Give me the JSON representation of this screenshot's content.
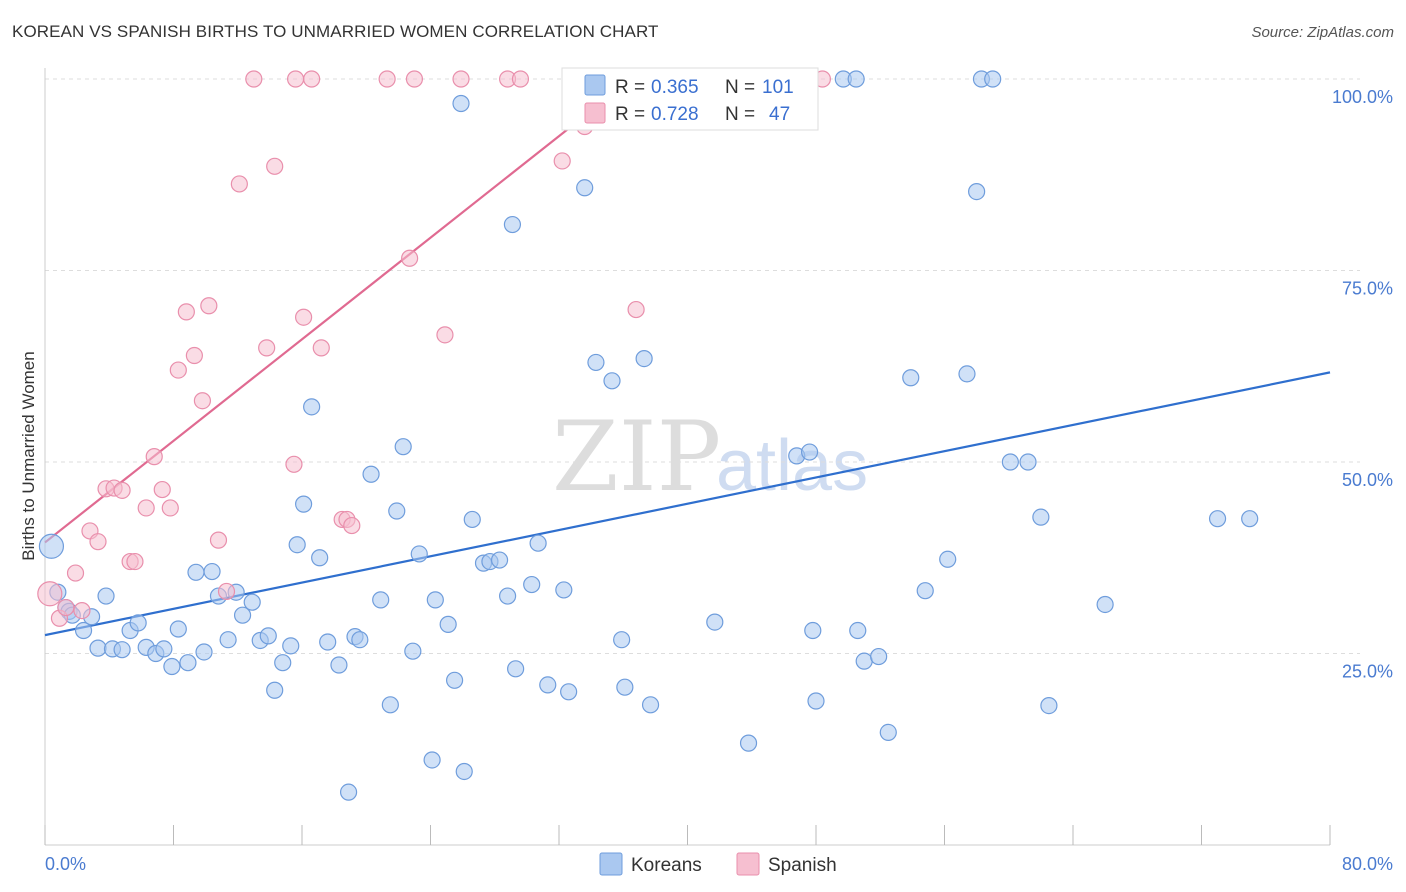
{
  "header": {
    "title": "KOREAN VS SPANISH BIRTHS TO UNMARRIED WOMEN CORRELATION CHART",
    "source": "Source: ZipAtlas.com"
  },
  "watermark": {
    "zip": "ZIP",
    "atlas": "atlas"
  },
  "legend_top": {
    "rows": [
      {
        "r_label": "R =",
        "r_value": "0.365",
        "n_label": "N =",
        "n_value": "101"
      },
      {
        "r_label": "R =",
        "r_value": "0.728",
        "n_label": "N =",
        "n_value": "47"
      }
    ]
  },
  "chart_data": {
    "type": "scatter",
    "title": "KOREAN VS SPANISH BIRTHS TO UNMARRIED WOMEN CORRELATION CHART",
    "xlabel": "",
    "ylabel": "Births to Unmarried Women",
    "xlim": [
      0,
      80
    ],
    "ylim": [
      0,
      100
    ],
    "x_tick_labels": [
      "0.0%",
      "80.0%"
    ],
    "y_tick_labels": [
      "25.0%",
      "50.0%",
      "75.0%",
      "100.0%"
    ],
    "y_ticks": [
      25,
      50,
      75,
      100
    ],
    "grid": true,
    "legend_position": "bottom",
    "colors": {
      "korean_fill": "#aac8f0",
      "korean_stroke": "#6f9ddc",
      "korean_line": "#2f6fce",
      "spanish_fill": "#f6bfd0",
      "spanish_stroke": "#e98fac",
      "spanish_line": "#e06a91",
      "tick_label": "#4a7bd0",
      "grid": "#dddddd"
    },
    "series": [
      {
        "name": "Koreans",
        "r": 0.365,
        "n": 101,
        "trend": {
          "x": [
            0,
            80
          ],
          "y": [
            27.4,
            61.7
          ]
        },
        "points": [
          [
            0.4,
            39
          ],
          [
            0.8,
            33
          ],
          [
            1.3,
            31
          ],
          [
            1.5,
            30.5
          ],
          [
            1.7,
            30
          ],
          [
            2.4,
            28
          ],
          [
            2.9,
            29.8
          ],
          [
            3.3,
            25.7
          ],
          [
            3.8,
            32.5
          ],
          [
            4.2,
            25.6
          ],
          [
            4.8,
            25.5
          ],
          [
            5.3,
            28
          ],
          [
            5.8,
            29
          ],
          [
            6.3,
            25.8
          ],
          [
            6.9,
            25
          ],
          [
            7.4,
            25.6
          ],
          [
            7.9,
            23.3
          ],
          [
            8.3,
            28.2
          ],
          [
            8.9,
            23.8
          ],
          [
            9.4,
            35.6
          ],
          [
            9.9,
            25.2
          ],
          [
            10.4,
            35.7
          ],
          [
            10.8,
            32.5
          ],
          [
            11.4,
            26.8
          ],
          [
            11.9,
            33
          ],
          [
            12.3,
            30
          ],
          [
            12.9,
            31.7
          ],
          [
            13.4,
            26.7
          ],
          [
            13.9,
            27.3
          ],
          [
            14.3,
            20.2
          ],
          [
            14.8,
            23.8
          ],
          [
            15.3,
            26
          ],
          [
            15.7,
            39.2
          ],
          [
            16.1,
            44.5
          ],
          [
            16.6,
            57.2
          ],
          [
            17.1,
            37.5
          ],
          [
            17.6,
            26.5
          ],
          [
            18.3,
            23.5
          ],
          [
            18.9,
            6.9
          ],
          [
            19.3,
            27.2
          ],
          [
            19.6,
            26.8
          ],
          [
            20.3,
            48.4
          ],
          [
            20.9,
            32
          ],
          [
            21.5,
            18.3
          ],
          [
            21.9,
            43.6
          ],
          [
            22.3,
            52
          ],
          [
            22.9,
            25.3
          ],
          [
            23.3,
            38
          ],
          [
            24.1,
            11.1
          ],
          [
            24.3,
            32
          ],
          [
            25.1,
            28.8
          ],
          [
            25.5,
            21.5
          ],
          [
            26.1,
            9.6
          ],
          [
            26.6,
            42.5
          ],
          [
            27.3,
            36.8
          ],
          [
            27.7,
            37
          ],
          [
            28.3,
            37.2
          ],
          [
            28.8,
            32.5
          ],
          [
            29.3,
            23
          ],
          [
            30.3,
            34
          ],
          [
            30.7,
            39.4
          ],
          [
            31.3,
            20.9
          ],
          [
            32.3,
            33.3
          ],
          [
            32.6,
            20
          ],
          [
            33.4,
            100
          ],
          [
            33.6,
            85.8
          ],
          [
            34.3,
            63
          ],
          [
            35.3,
            60.6
          ],
          [
            35.9,
            26.8
          ],
          [
            36.1,
            20.6
          ],
          [
            37.3,
            63.5
          ],
          [
            37.7,
            18.3
          ],
          [
            25.9,
            96.8
          ],
          [
            29.1,
            81
          ],
          [
            37.6,
            100
          ],
          [
            39.0,
            100
          ],
          [
            39.4,
            100
          ],
          [
            41.7,
            29.1
          ],
          [
            43.8,
            13.3
          ],
          [
            46.8,
            50.8
          ],
          [
            47.6,
            51.3
          ],
          [
            47.8,
            28
          ],
          [
            48.0,
            18.8
          ],
          [
            49.7,
            100
          ],
          [
            50.5,
            100
          ],
          [
            50.6,
            28
          ],
          [
            51.0,
            24
          ],
          [
            51.9,
            24.6
          ],
          [
            52.5,
            14.7
          ],
          [
            53.9,
            61
          ],
          [
            54.8,
            33.2
          ],
          [
            56.2,
            37.3
          ],
          [
            57.4,
            61.5
          ],
          [
            58.0,
            85.3
          ],
          [
            58.3,
            100
          ],
          [
            59.0,
            100
          ],
          [
            60.1,
            50
          ],
          [
            61.2,
            50
          ],
          [
            62.0,
            42.8
          ],
          [
            62.5,
            18.2
          ],
          [
            66.0,
            31.4
          ],
          [
            73.0,
            42.6
          ],
          [
            75.0,
            42.6
          ]
        ]
      },
      {
        "name": "Spanish",
        "r": 0.728,
        "n": 47,
        "trend": {
          "x": [
            0,
            36.5
          ],
          "y": [
            39.5,
            100
          ]
        },
        "points": [
          [
            0.3,
            32.8
          ],
          [
            0.9,
            29.6
          ],
          [
            1.3,
            31
          ],
          [
            1.9,
            35.5
          ],
          [
            2.3,
            30.6
          ],
          [
            2.8,
            41
          ],
          [
            3.3,
            39.6
          ],
          [
            3.8,
            46.5
          ],
          [
            4.3,
            46.6
          ],
          [
            4.8,
            46.3
          ],
          [
            5.3,
            37
          ],
          [
            5.6,
            37
          ],
          [
            6.3,
            44
          ],
          [
            6.8,
            50.7
          ],
          [
            7.3,
            46.4
          ],
          [
            7.8,
            44
          ],
          [
            8.3,
            62
          ],
          [
            8.8,
            69.6
          ],
          [
            9.3,
            63.9
          ],
          [
            9.8,
            58
          ],
          [
            10.2,
            70.4
          ],
          [
            10.8,
            39.8
          ],
          [
            11.3,
            33.1
          ],
          [
            12.1,
            86.3
          ],
          [
            13.0,
            100
          ],
          [
            13.8,
            64.9
          ],
          [
            14.3,
            88.6
          ],
          [
            15.5,
            49.7
          ],
          [
            15.6,
            100
          ],
          [
            16.1,
            68.9
          ],
          [
            16.6,
            100
          ],
          [
            17.2,
            64.9
          ],
          [
            18.5,
            42.5
          ],
          [
            18.8,
            42.5
          ],
          [
            19.1,
            41.7
          ],
          [
            21.3,
            100
          ],
          [
            22.7,
            76.6
          ],
          [
            23.0,
            100
          ],
          [
            24.9,
            66.6
          ],
          [
            25.9,
            100
          ],
          [
            28.8,
            100
          ],
          [
            29.6,
            100
          ],
          [
            32.2,
            89.3
          ],
          [
            33.6,
            93.8
          ],
          [
            35.7,
            100
          ],
          [
            36.8,
            69.9
          ],
          [
            48.4,
            100
          ]
        ]
      }
    ]
  }
}
